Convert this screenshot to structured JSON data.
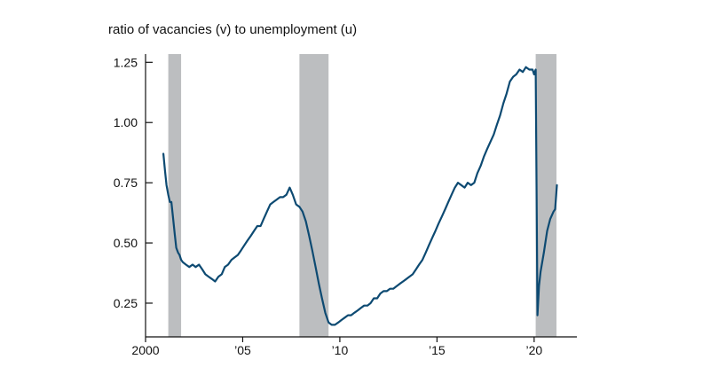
{
  "chart_data": {
    "type": "line",
    "title": "ratio of vacancies (v) to unemployment (u)",
    "xlim": [
      2000,
      2022.2
    ],
    "ylim": [
      0.11,
      1.31
    ],
    "x_ticks": [
      {
        "value": 2000,
        "label": "2000"
      },
      {
        "value": 2005,
        "label": "’05"
      },
      {
        "value": 2010,
        "label": "’10"
      },
      {
        "value": 2015,
        "label": "’15"
      },
      {
        "value": 2020,
        "label": "’20"
      }
    ],
    "y_ticks": [
      {
        "value": 0.25,
        "label": "0.25"
      },
      {
        "value": 0.5,
        "label": "0.50"
      },
      {
        "value": 0.75,
        "label": "0.75"
      },
      {
        "value": 1.0,
        "label": "1.00"
      },
      {
        "value": 1.25,
        "label": "1.25"
      }
    ],
    "recessions": [
      {
        "start": 2001.17,
        "end": 2001.83
      },
      {
        "start": 2007.92,
        "end": 2009.42
      },
      {
        "start": 2020.08,
        "end": 2021.15
      }
    ],
    "colors": {
      "line": "#0d4a72",
      "recession": "#bcbec0",
      "axis": "#111111"
    },
    "series": [
      {
        "x": [
          2000.92,
          2001.0,
          2001.08,
          2001.17,
          2001.25,
          2001.33,
          2001.42,
          2001.5,
          2001.58,
          2001.67,
          2001.75,
          2001.83,
          2001.92,
          2002.08,
          2002.25,
          2002.42,
          2002.58,
          2002.75,
          2002.92,
          2003.08,
          2003.25,
          2003.42,
          2003.58,
          2003.75,
          2003.92,
          2004.08,
          2004.25,
          2004.42,
          2004.58,
          2004.75,
          2004.92,
          2005.08,
          2005.25,
          2005.42,
          2005.58,
          2005.75,
          2005.92,
          2006.08,
          2006.25,
          2006.42,
          2006.58,
          2006.75,
          2006.92,
          2007.08,
          2007.25,
          2007.42,
          2007.58,
          2007.75,
          2007.92,
          2008.08,
          2008.25,
          2008.42,
          2008.58,
          2008.75,
          2008.92,
          2009.08,
          2009.25,
          2009.42,
          2009.58,
          2009.75,
          2009.92,
          2010.08,
          2010.25,
          2010.42,
          2010.58,
          2010.75,
          2010.92,
          2011.08,
          2011.25,
          2011.42,
          2011.58,
          2011.75,
          2011.92,
          2012.08,
          2012.25,
          2012.42,
          2012.58,
          2012.75,
          2012.92,
          2013.08,
          2013.25,
          2013.42,
          2013.58,
          2013.75,
          2013.92,
          2014.08,
          2014.25,
          2014.42,
          2014.58,
          2014.75,
          2014.92,
          2015.08,
          2015.25,
          2015.42,
          2015.58,
          2015.75,
          2015.92,
          2016.08,
          2016.25,
          2016.42,
          2016.58,
          2016.75,
          2016.92,
          2017.08,
          2017.25,
          2017.42,
          2017.58,
          2017.75,
          2017.92,
          2018.08,
          2018.25,
          2018.42,
          2018.58,
          2018.75,
          2018.92,
          2019.08,
          2019.25,
          2019.42,
          2019.58,
          2019.75,
          2019.92,
          2020.0,
          2020.08,
          2020.17,
          2020.25,
          2020.33,
          2020.5,
          2020.67,
          2020.83,
          2021.0,
          2021.08,
          2021.17
        ],
        "y": [
          0.87,
          0.8,
          0.74,
          0.7,
          0.67,
          0.67,
          0.6,
          0.54,
          0.48,
          0.46,
          0.45,
          0.43,
          0.42,
          0.41,
          0.4,
          0.41,
          0.4,
          0.41,
          0.39,
          0.37,
          0.36,
          0.35,
          0.34,
          0.36,
          0.37,
          0.4,
          0.41,
          0.43,
          0.44,
          0.45,
          0.47,
          0.49,
          0.51,
          0.53,
          0.55,
          0.57,
          0.57,
          0.6,
          0.63,
          0.66,
          0.67,
          0.68,
          0.69,
          0.69,
          0.7,
          0.73,
          0.7,
          0.66,
          0.65,
          0.63,
          0.59,
          0.53,
          0.47,
          0.4,
          0.33,
          0.27,
          0.21,
          0.17,
          0.16,
          0.16,
          0.17,
          0.18,
          0.19,
          0.2,
          0.2,
          0.21,
          0.22,
          0.23,
          0.24,
          0.24,
          0.25,
          0.27,
          0.27,
          0.29,
          0.3,
          0.3,
          0.31,
          0.31,
          0.32,
          0.33,
          0.34,
          0.35,
          0.36,
          0.37,
          0.39,
          0.41,
          0.43,
          0.46,
          0.49,
          0.52,
          0.55,
          0.58,
          0.61,
          0.64,
          0.67,
          0.7,
          0.73,
          0.75,
          0.74,
          0.73,
          0.75,
          0.74,
          0.75,
          0.79,
          0.82,
          0.86,
          0.89,
          0.92,
          0.95,
          0.99,
          1.03,
          1.08,
          1.12,
          1.17,
          1.19,
          1.2,
          1.22,
          1.21,
          1.23,
          1.22,
          1.22,
          1.2,
          1.22,
          0.2,
          0.32,
          0.38,
          0.46,
          0.55,
          0.6,
          0.63,
          0.64,
          0.74
        ]
      }
    ]
  }
}
